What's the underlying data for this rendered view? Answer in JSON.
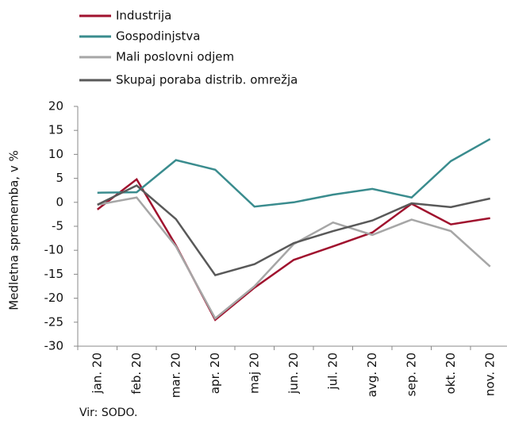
{
  "chart_data": {
    "type": "line",
    "categories": [
      "jan. 20",
      "feb. 20",
      "mar. 20",
      "apr. 20",
      "maj 20",
      "jun. 20",
      "jul. 20",
      "avg. 20",
      "sep. 20",
      "okt. 20",
      "nov. 20"
    ],
    "series": [
      {
        "name": "Industrija",
        "color": "#a0122e",
        "values": [
          -1.5,
          4.8,
          -9,
          -24.5,
          -17.8,
          -12,
          -9.2,
          -6.3,
          -0.3,
          -4.6,
          -3.3
        ]
      },
      {
        "name": "Gospodinjstva",
        "color": "#3a8c8e",
        "values": [
          2,
          2.1,
          8.8,
          6.8,
          -0.9,
          0,
          1.6,
          2.8,
          1,
          8.6,
          13.2
        ]
      },
      {
        "name": "Mali poslovni odjem",
        "color": "#a6a6a6",
        "values": [
          -0.5,
          1,
          -9.2,
          -24.2,
          -17.5,
          -8.7,
          -4.2,
          -6.8,
          -3.6,
          -6,
          -13.4
        ]
      },
      {
        "name": "Skupaj poraba distrib. omrežja",
        "color": "#595959",
        "values": [
          -0.5,
          3.5,
          -3.5,
          -15.2,
          -12.9,
          -8.5,
          -6,
          -3.8,
          -0.2,
          -1,
          0.8
        ]
      }
    ],
    "ylabel": "Medletna sprememba, v %",
    "ylim": [
      -30,
      20
    ],
    "yticks": [
      -30,
      -25,
      -20,
      -15,
      -10,
      -5,
      0,
      5,
      10,
      15,
      20
    ],
    "source": "Vir: SODO.",
    "legend": "top-left"
  }
}
